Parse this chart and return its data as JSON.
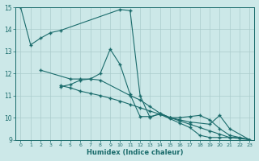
{
  "background_color": "#cce8e8",
  "grid_color": "#aacccc",
  "line_color": "#1a6b6b",
  "xlabel": "Humidex (Indice chaleur)",
  "xlim": [
    -0.5,
    23.5
  ],
  "ylim": [
    9,
    15
  ],
  "xtick_labels": [
    "0",
    "1",
    "2",
    "3",
    "4",
    "5",
    "6",
    "7",
    "8",
    "9",
    "10",
    "11",
    "12",
    "13",
    "14",
    "15",
    "16",
    "17",
    "18",
    "19",
    "20",
    "21",
    "22",
    "23"
  ],
  "ytick_labels": [
    "9",
    "10",
    "11",
    "12",
    "13",
    "14",
    "15"
  ],
  "s1x": [
    0,
    1,
    2,
    3,
    4,
    10,
    11,
    12,
    13,
    14,
    15,
    16,
    17,
    18,
    19,
    20,
    21,
    23
  ],
  "s1y": [
    15.0,
    13.3,
    13.6,
    13.85,
    13.95,
    14.9,
    14.85,
    11.0,
    10.0,
    10.2,
    10.0,
    10.0,
    10.05,
    10.1,
    9.9,
    9.5,
    9.2,
    9.0
  ],
  "s2x": [
    2,
    5,
    6,
    7,
    8,
    11,
    12,
    13,
    14,
    15,
    16,
    17,
    19,
    20,
    21,
    23
  ],
  "s2y": [
    12.15,
    11.75,
    11.75,
    11.75,
    11.7,
    11.0,
    10.8,
    10.5,
    10.2,
    10.0,
    9.9,
    9.8,
    9.7,
    10.1,
    9.5,
    9.0
  ],
  "s3x": [
    4,
    5,
    6,
    7,
    8,
    9,
    10,
    11,
    12,
    13,
    14,
    15,
    16,
    17,
    18,
    19,
    20,
    21,
    22,
    23
  ],
  "s3y": [
    11.4,
    11.5,
    11.7,
    11.75,
    12.0,
    13.1,
    12.4,
    11.05,
    10.05,
    10.05,
    10.15,
    9.95,
    9.75,
    9.55,
    9.2,
    9.1,
    9.1,
    9.1,
    9.1,
    9.0
  ],
  "s4x": [
    4,
    5,
    6,
    7,
    8,
    9,
    10,
    11,
    12,
    13,
    14,
    15,
    16,
    17,
    18,
    19,
    20,
    21,
    22,
    23
  ],
  "s4y": [
    11.45,
    11.35,
    11.2,
    11.1,
    11.0,
    10.88,
    10.75,
    10.6,
    10.45,
    10.3,
    10.15,
    10.0,
    9.85,
    9.7,
    9.55,
    9.4,
    9.25,
    9.1,
    9.05,
    9.0
  ]
}
